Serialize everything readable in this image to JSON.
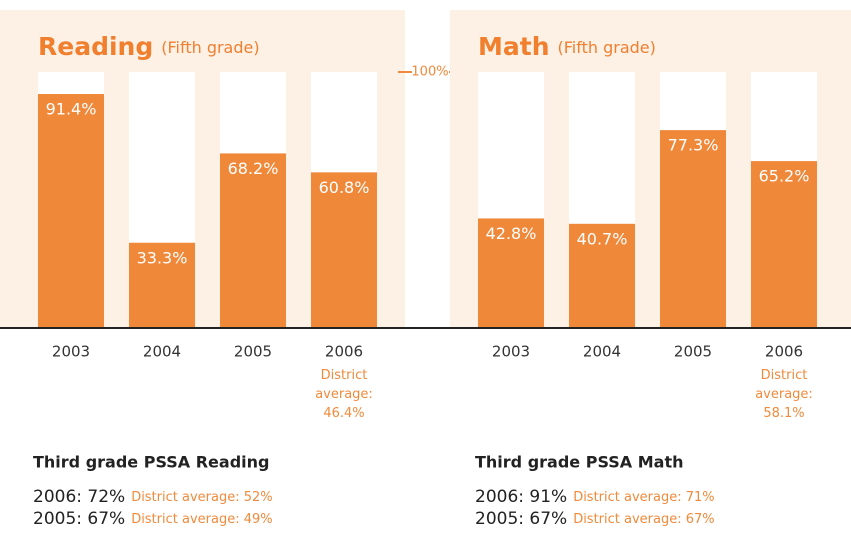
{
  "chart_data": [
    {
      "type": "bar",
      "title": "Reading",
      "subtitle": "(Fifth grade)",
      "categories": [
        "2003",
        "2004",
        "2005",
        "2006"
      ],
      "values": [
        91.4,
        33.3,
        68.2,
        60.8
      ],
      "value_labels": [
        "91.4%",
        "33.3%",
        "68.2%",
        "60.8%"
      ],
      "annotation": "District average: 46.4%",
      "color": "#f0883a",
      "ylim": [
        0,
        100
      ],
      "yticks": [
        {
          "value": 100,
          "label": "100%"
        }
      ]
    },
    {
      "type": "bar",
      "title": "Math",
      "subtitle": "(Fifth grade)",
      "categories": [
        "2003",
        "2004",
        "2005",
        "2006"
      ],
      "values": [
        42.8,
        40.7,
        77.3,
        65.2
      ],
      "value_labels": [
        "42.8%",
        "40.7%",
        "77.3%",
        "65.2%"
      ],
      "annotation": "District average: 58.1%",
      "color": "#f0883a",
      "ylim": [
        0,
        100
      ]
    }
  ],
  "third_grade": [
    {
      "title": "Third grade PSSA Reading",
      "rows": [
        {
          "result": "2006: 72%",
          "district": "District average: 52%"
        },
        {
          "result": "2005: 67%",
          "district": "District average: 49%"
        }
      ]
    },
    {
      "title": "Third grade PSSA Math",
      "rows": [
        {
          "result": "2006: 91%",
          "district": "District average: 71%"
        },
        {
          "result": "2005: 67%",
          "district": "District average: 67%"
        }
      ]
    }
  ]
}
